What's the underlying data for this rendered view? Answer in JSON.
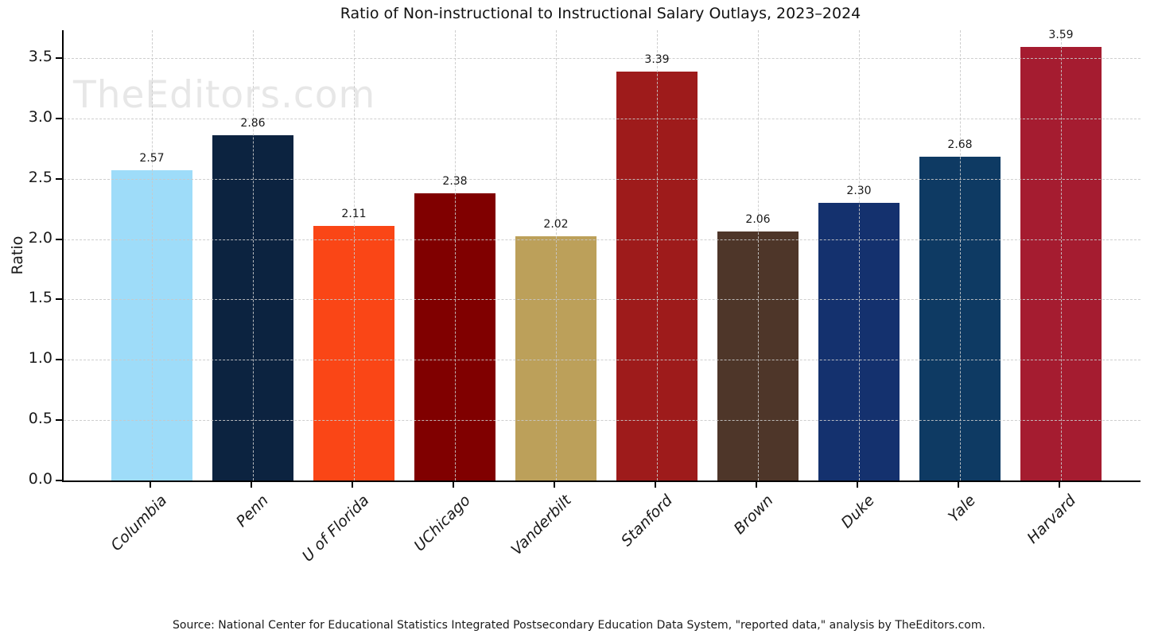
{
  "chart_data": {
    "type": "bar",
    "title": "Ratio of Non-instructional to Instructional Salary Outlays, 2023–2024",
    "xlabel": "",
    "ylabel": "Ratio",
    "categories": [
      "Columbia",
      "Penn",
      "U of Florida",
      "UChicago",
      "Vanderbilt",
      "Stanford",
      "Brown",
      "Duke",
      "Yale",
      "Harvard"
    ],
    "values": [
      2.57,
      2.86,
      2.11,
      2.38,
      2.02,
      3.39,
      2.06,
      2.3,
      2.68,
      3.59
    ],
    "bar_colors": [
      "#9EDCF9",
      "#0C2340",
      "#FA4616",
      "#800000",
      "#BCA05A",
      "#9E1B1B",
      "#4E3629",
      "#14316E",
      "#0E3A63",
      "#A51C30"
    ],
    "yticks": [
      0.0,
      0.5,
      1.0,
      1.5,
      2.0,
      2.5,
      3.0,
      3.5
    ],
    "ylim": [
      0,
      3.73
    ],
    "grid": "dashed, horizontal and vertical, drawn over bars",
    "legend": "none",
    "x_label_style": "italic, rotated 45 degrees",
    "value_label_format": "2 decimals above each bar"
  },
  "watermark": "TheEditors.com",
  "source_note": "Source: National Center for Educational Statistics Integrated Postsecondary Education Data System, \"reported data,\" analysis by TheEditors.com.",
  "colors": {
    "background": "#ffffff",
    "axis": "#000000",
    "grid": "#c9c9c9",
    "text": "#1a1a1a",
    "watermark": "#e7e7e7"
  }
}
